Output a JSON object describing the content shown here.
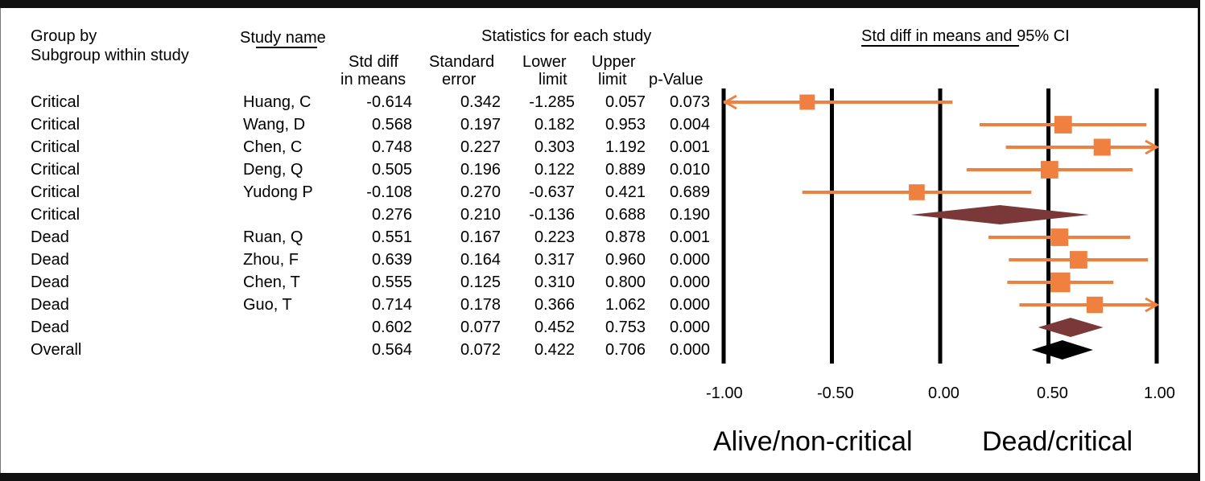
{
  "headers": {
    "group_by": "Group by",
    "subgroup": "Subgroup within study",
    "study_name": "Study name",
    "stats_title": "Statistics for each study",
    "ci_title": "Std diff in means and 95% CI",
    "col_std_diff_1": "Std diff",
    "col_std_diff_2": "in means",
    "col_se_1": "Standard",
    "col_se_2": "error",
    "col_lower_1": "Lower",
    "col_lower_2": "limit",
    "col_upper_1": "Upper",
    "col_upper_2": "limit",
    "col_p": "p-Value"
  },
  "rows": [
    {
      "group": "Critical",
      "study": "Huang, C",
      "smd": "-0.614",
      "se": "0.342",
      "lower": "-1.285",
      "upper": "0.057",
      "p": "0.073"
    },
    {
      "group": "Critical",
      "study": "Wang, D",
      "smd": "0.568",
      "se": "0.197",
      "lower": "0.182",
      "upper": "0.953",
      "p": "0.004"
    },
    {
      "group": "Critical",
      "study": "Chen, C",
      "smd": "0.748",
      "se": "0.227",
      "lower": "0.303",
      "upper": "1.192",
      "p": "0.001"
    },
    {
      "group": "Critical",
      "study": "Deng, Q",
      "smd": "0.505",
      "se": "0.196",
      "lower": "0.122",
      "upper": "0.889",
      "p": "0.010"
    },
    {
      "group": "Critical",
      "study": "Yudong P",
      "smd": "-0.108",
      "se": "0.270",
      "lower": "-0.637",
      "upper": "0.421",
      "p": "0.689"
    },
    {
      "group": "Critical",
      "study": "",
      "smd": "0.276",
      "se": "0.210",
      "lower": "-0.136",
      "upper": "0.688",
      "p": "0.190"
    },
    {
      "group": "Dead",
      "study": "Ruan, Q",
      "smd": "0.551",
      "se": "0.167",
      "lower": "0.223",
      "upper": "0.878",
      "p": "0.001"
    },
    {
      "group": "Dead",
      "study": "Zhou, F",
      "smd": "0.639",
      "se": "0.164",
      "lower": "0.317",
      "upper": "0.960",
      "p": "0.000"
    },
    {
      "group": "Dead",
      "study": "Chen, T",
      "smd": "0.555",
      "se": "0.125",
      "lower": "0.310",
      "upper": "0.800",
      "p": "0.000"
    },
    {
      "group": "Dead",
      "study": "Guo, T",
      "smd": "0.714",
      "se": "0.178",
      "lower": "0.366",
      "upper": "1.062",
      "p": "0.000"
    },
    {
      "group": "Dead",
      "study": "",
      "smd": "0.602",
      "se": "0.077",
      "lower": "0.452",
      "upper": "0.753",
      "p": "0.000"
    },
    {
      "group": "Overall",
      "study": "",
      "smd": "0.564",
      "se": "0.072",
      "lower": "0.422",
      "upper": "0.706",
      "p": "0.000"
    }
  ],
  "axis": {
    "ticks": [
      "-1.00",
      "-0.50",
      "0.00",
      "0.50",
      "1.00"
    ],
    "left_label": "Alive/non-critical",
    "right_label": "Dead/critical"
  },
  "colors": {
    "study_marker": "#f08040",
    "subgroup_diamond": "#7a3838",
    "overall_diamond": "#000000",
    "gridline": "#000000"
  },
  "chart_data": {
    "type": "forest",
    "xlim": [
      -1.0,
      1.0
    ],
    "xticks": [
      -1.0,
      -0.5,
      0.0,
      0.5,
      1.0
    ],
    "grid": "vertical lines at ticks",
    "studies": [
      {
        "group": "Critical",
        "name": "Huang, C",
        "estimate": -0.614,
        "lower": -1.285,
        "upper": 0.057,
        "kind": "study",
        "weight": 0.5
      },
      {
        "group": "Critical",
        "name": "Wang, D",
        "estimate": 0.568,
        "lower": 0.182,
        "upper": 0.953,
        "kind": "study",
        "weight": 0.7
      },
      {
        "group": "Critical",
        "name": "Chen, C",
        "estimate": 0.748,
        "lower": 0.303,
        "upper": 1.192,
        "kind": "study",
        "weight": 0.65
      },
      {
        "group": "Critical",
        "name": "Deng, Q",
        "estimate": 0.505,
        "lower": 0.122,
        "upper": 0.889,
        "kind": "study",
        "weight": 0.7
      },
      {
        "group": "Critical",
        "name": "Yudong P",
        "estimate": -0.108,
        "lower": -0.637,
        "upper": 0.421,
        "kind": "study",
        "weight": 0.55
      },
      {
        "group": "Critical",
        "name": "",
        "estimate": 0.276,
        "lower": -0.136,
        "upper": 0.688,
        "kind": "subgroup"
      },
      {
        "group": "Dead",
        "name": "Ruan, Q",
        "estimate": 0.551,
        "lower": 0.223,
        "upper": 0.878,
        "kind": "study",
        "weight": 0.7
      },
      {
        "group": "Dead",
        "name": "Zhou, F",
        "estimate": 0.639,
        "lower": 0.317,
        "upper": 0.96,
        "kind": "study",
        "weight": 0.7
      },
      {
        "group": "Dead",
        "name": "Chen, T",
        "estimate": 0.555,
        "lower": 0.31,
        "upper": 0.8,
        "kind": "study",
        "weight": 0.9
      },
      {
        "group": "Dead",
        "name": "Guo, T",
        "estimate": 0.714,
        "lower": 0.366,
        "upper": 1.062,
        "kind": "study",
        "weight": 0.6
      },
      {
        "group": "Dead",
        "name": "",
        "estimate": 0.602,
        "lower": 0.452,
        "upper": 0.753,
        "kind": "subgroup"
      },
      {
        "group": "Overall",
        "name": "",
        "estimate": 0.564,
        "lower": 0.422,
        "upper": 0.706,
        "kind": "overall"
      }
    ]
  }
}
